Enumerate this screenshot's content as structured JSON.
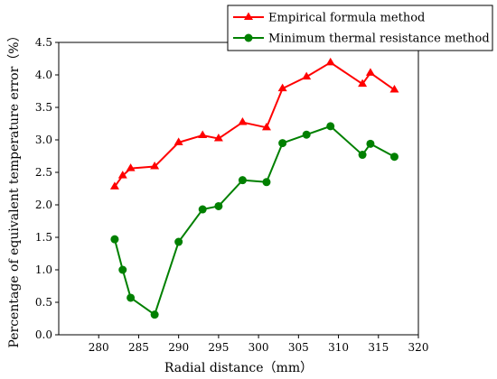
{
  "chart_data": {
    "type": "line",
    "title": "",
    "xlabel": "Radial distance（mm）",
    "ylabel": "Percentage of equivalent temperature error（%）",
    "xlim": [
      275,
      320
    ],
    "ylim": [
      0.0,
      4.5
    ],
    "xticks": [
      "280",
      "285",
      "290",
      "295",
      "300",
      "305",
      "310",
      "315",
      "320"
    ],
    "yticks": [
      "0.0",
      "0.5",
      "1.0",
      "1.5",
      "2.0",
      "2.5",
      "3.0",
      "3.5",
      "4.0",
      "4.5"
    ],
    "grid": false,
    "legend_position": "top-right",
    "series": [
      {
        "name": "Empirical formula method",
        "color": "#ff0000",
        "marker": "triangle",
        "x": [
          282,
          283,
          284,
          287,
          290,
          293,
          295,
          298,
          301,
          303,
          306,
          309,
          313,
          314,
          317
        ],
        "y": [
          2.28,
          2.45,
          2.56,
          2.59,
          2.96,
          3.07,
          3.02,
          3.27,
          3.19,
          3.79,
          3.97,
          4.19,
          3.86,
          4.03,
          3.77
        ]
      },
      {
        "name": "Minimum thermal resistance method",
        "color": "#008000",
        "marker": "circle",
        "x": [
          282,
          283,
          284,
          287,
          290,
          293,
          295,
          298,
          301,
          303,
          306,
          309,
          313,
          314,
          317
        ],
        "y": [
          1.47,
          1.0,
          0.57,
          0.31,
          1.43,
          1.93,
          1.98,
          2.38,
          2.35,
          2.95,
          3.08,
          3.21,
          2.77,
          2.94,
          2.74
        ]
      }
    ]
  }
}
